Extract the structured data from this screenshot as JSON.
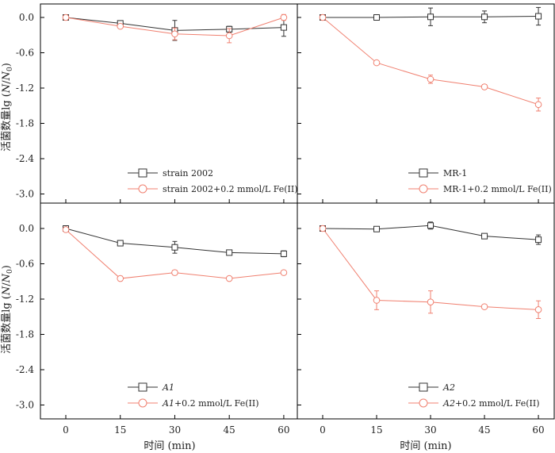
{
  "figure": {
    "ylabel_prefix": "活菌数量lg (",
    "ylabel_N": "N",
    "ylabel_slash": "/",
    "ylabel_N0": "N",
    "ylabel_sub": "0",
    "ylabel_suffix": ")",
    "xlabel": "时间 (min)",
    "x_ticks": [
      "0",
      "15",
      "30",
      "45",
      "60"
    ],
    "y_ticks": [
      "0.0",
      "-0.6",
      "-1.2",
      "-1.8",
      "-2.4",
      "-3.0"
    ]
  },
  "chart_data": [
    {
      "type": "line",
      "x": [
        0,
        15,
        30,
        45,
        60
      ],
      "xlim": [
        -6,
        67
      ],
      "ylim": [
        -3.3,
        0.17
      ],
      "legend_position": "bottom-center",
      "series": [
        {
          "name": "strain 2002",
          "marker": "square",
          "color": "#333333",
          "values": [
            0,
            -0.1,
            -0.22,
            -0.2,
            -0.17
          ],
          "errors": [
            0.02,
            0.02,
            0.17,
            0.05,
            0.15
          ]
        },
        {
          "name": "strain 2002+0.2 mmol/L Fe(II)",
          "marker": "circle",
          "color": "#f08070",
          "values": [
            0,
            -0.15,
            -0.28,
            -0.31,
            0
          ],
          "errors": [
            0.02,
            0.03,
            0.1,
            0.12,
            0.05
          ]
        }
      ]
    },
    {
      "type": "line",
      "x": [
        0,
        15,
        30,
        45,
        60
      ],
      "xlim": [
        -6,
        67
      ],
      "ylim": [
        -3.3,
        0.17
      ],
      "legend_position": "bottom-center",
      "series": [
        {
          "name": "MR-1",
          "marker": "square",
          "color": "#333333",
          "values": [
            0,
            0,
            0.01,
            0.01,
            0.02
          ],
          "errors": [
            0.02,
            0.02,
            0.15,
            0.1,
            0.15
          ]
        },
        {
          "name": "MR-1+0.2 mmol/L Fe(II)",
          "marker": "circle",
          "color": "#f08070",
          "values": [
            0,
            -0.77,
            -1.05,
            -1.18,
            -1.48
          ],
          "errors": [
            0.02,
            0.03,
            0.07,
            0.04,
            0.11
          ]
        }
      ]
    },
    {
      "type": "line",
      "x": [
        0,
        15,
        30,
        45,
        60
      ],
      "xlim": [
        -6,
        67
      ],
      "ylim": [
        -3.3,
        0.17
      ],
      "legend_position": "bottom-center",
      "series": [
        {
          "name": "A1",
          "marker": "square",
          "color": "#333333",
          "values": [
            0,
            -0.25,
            -0.32,
            -0.41,
            -0.43
          ],
          "errors": [
            0.02,
            0.04,
            0.1,
            0.04,
            0.05
          ]
        },
        {
          "name": "A1+0.2 mmol/L Fe(II)",
          "marker": "circle",
          "color": "#f08070",
          "values": [
            -0.02,
            -0.85,
            -0.75,
            -0.85,
            -0.75
          ],
          "errors": [
            0.02,
            0.04,
            0.04,
            0.03,
            0.03
          ]
        }
      ]
    },
    {
      "type": "line",
      "x": [
        0,
        15,
        30,
        45,
        60
      ],
      "xlim": [
        -6,
        67
      ],
      "ylim": [
        -3.3,
        0.17
      ],
      "legend_position": "bottom-center",
      "series": [
        {
          "name": "A2",
          "marker": "square",
          "color": "#333333",
          "values": [
            0,
            -0.01,
            0.05,
            -0.13,
            -0.19
          ],
          "errors": [
            0.02,
            0.03,
            0.06,
            0.04,
            0.08
          ]
        },
        {
          "name": "A2+0.2 mmol/L Fe(II)",
          "marker": "circle",
          "color": "#f08070",
          "values": [
            0,
            -1.22,
            -1.25,
            -1.33,
            -1.38
          ],
          "errors": [
            0.02,
            0.16,
            0.19,
            0.03,
            0.15
          ]
        }
      ]
    }
  ]
}
